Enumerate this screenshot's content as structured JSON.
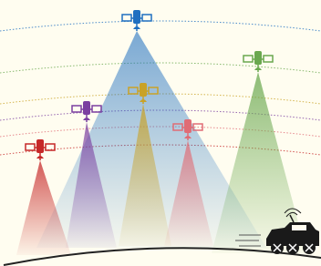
{
  "satellites": [
    {
      "color": "#1f6fc0"
    },
    {
      "color": "#6aa84f"
    },
    {
      "color": "#c9a227"
    },
    {
      "color": "#7b3fa0"
    },
    {
      "color": "#e06c75"
    },
    {
      "color": "#c62828"
    }
  ]
}
